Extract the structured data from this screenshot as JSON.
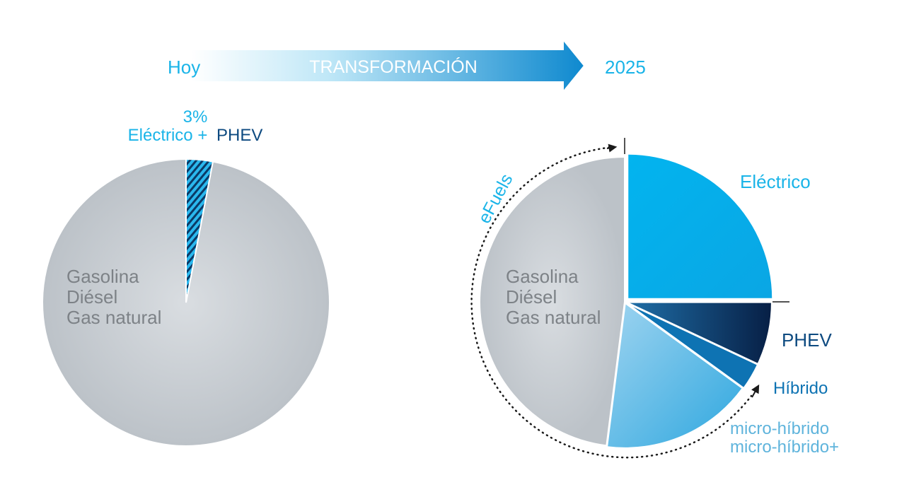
{
  "header": {
    "left_label": "Hoy",
    "arrow_label": "TRANSFORMACIÓN",
    "right_label": "2025"
  },
  "colors": {
    "accent_cyan": "#1ab4e8",
    "navy": "#0d4a80",
    "gray_slice": "#c4c9cf",
    "gray_text": "#7d8287",
    "electric": "#00b5ee",
    "phev_dark": "#0a2f5c",
    "hybrid": "#0e73b3",
    "micro": "#6cc1e8",
    "micro_text": "#5fb4dc"
  },
  "chart_data": [
    {
      "type": "pie",
      "subtitle_pct": "3%",
      "callout": {
        "part1": "Eléctrico +",
        "part2": "PHEV"
      },
      "categories": [
        "Eléctrico + PHEV",
        "Gasolina / Diésel / Gas natural"
      ],
      "values": [
        3,
        97
      ],
      "inner_label_lines": [
        "Gasolina",
        "Diésel",
        "Gas natural"
      ]
    },
    {
      "type": "pie",
      "categories": [
        "Eléctrico",
        "PHEV",
        "Híbrido",
        "micro-híbrido / micro-híbrido+",
        "Gasolina / Diésel / Gas natural"
      ],
      "values": [
        25,
        7,
        3,
        17,
        48
      ],
      "labels": {
        "electric": "Eléctrico",
        "phev": "PHEV",
        "hybrid": "Híbrido",
        "micro1": "micro-híbrido",
        "micro2": "micro-híbrido+"
      },
      "inner_label_lines": [
        "Gasolina",
        "Diésel",
        "Gas natural"
      ],
      "arc_label": "eFuels"
    }
  ]
}
